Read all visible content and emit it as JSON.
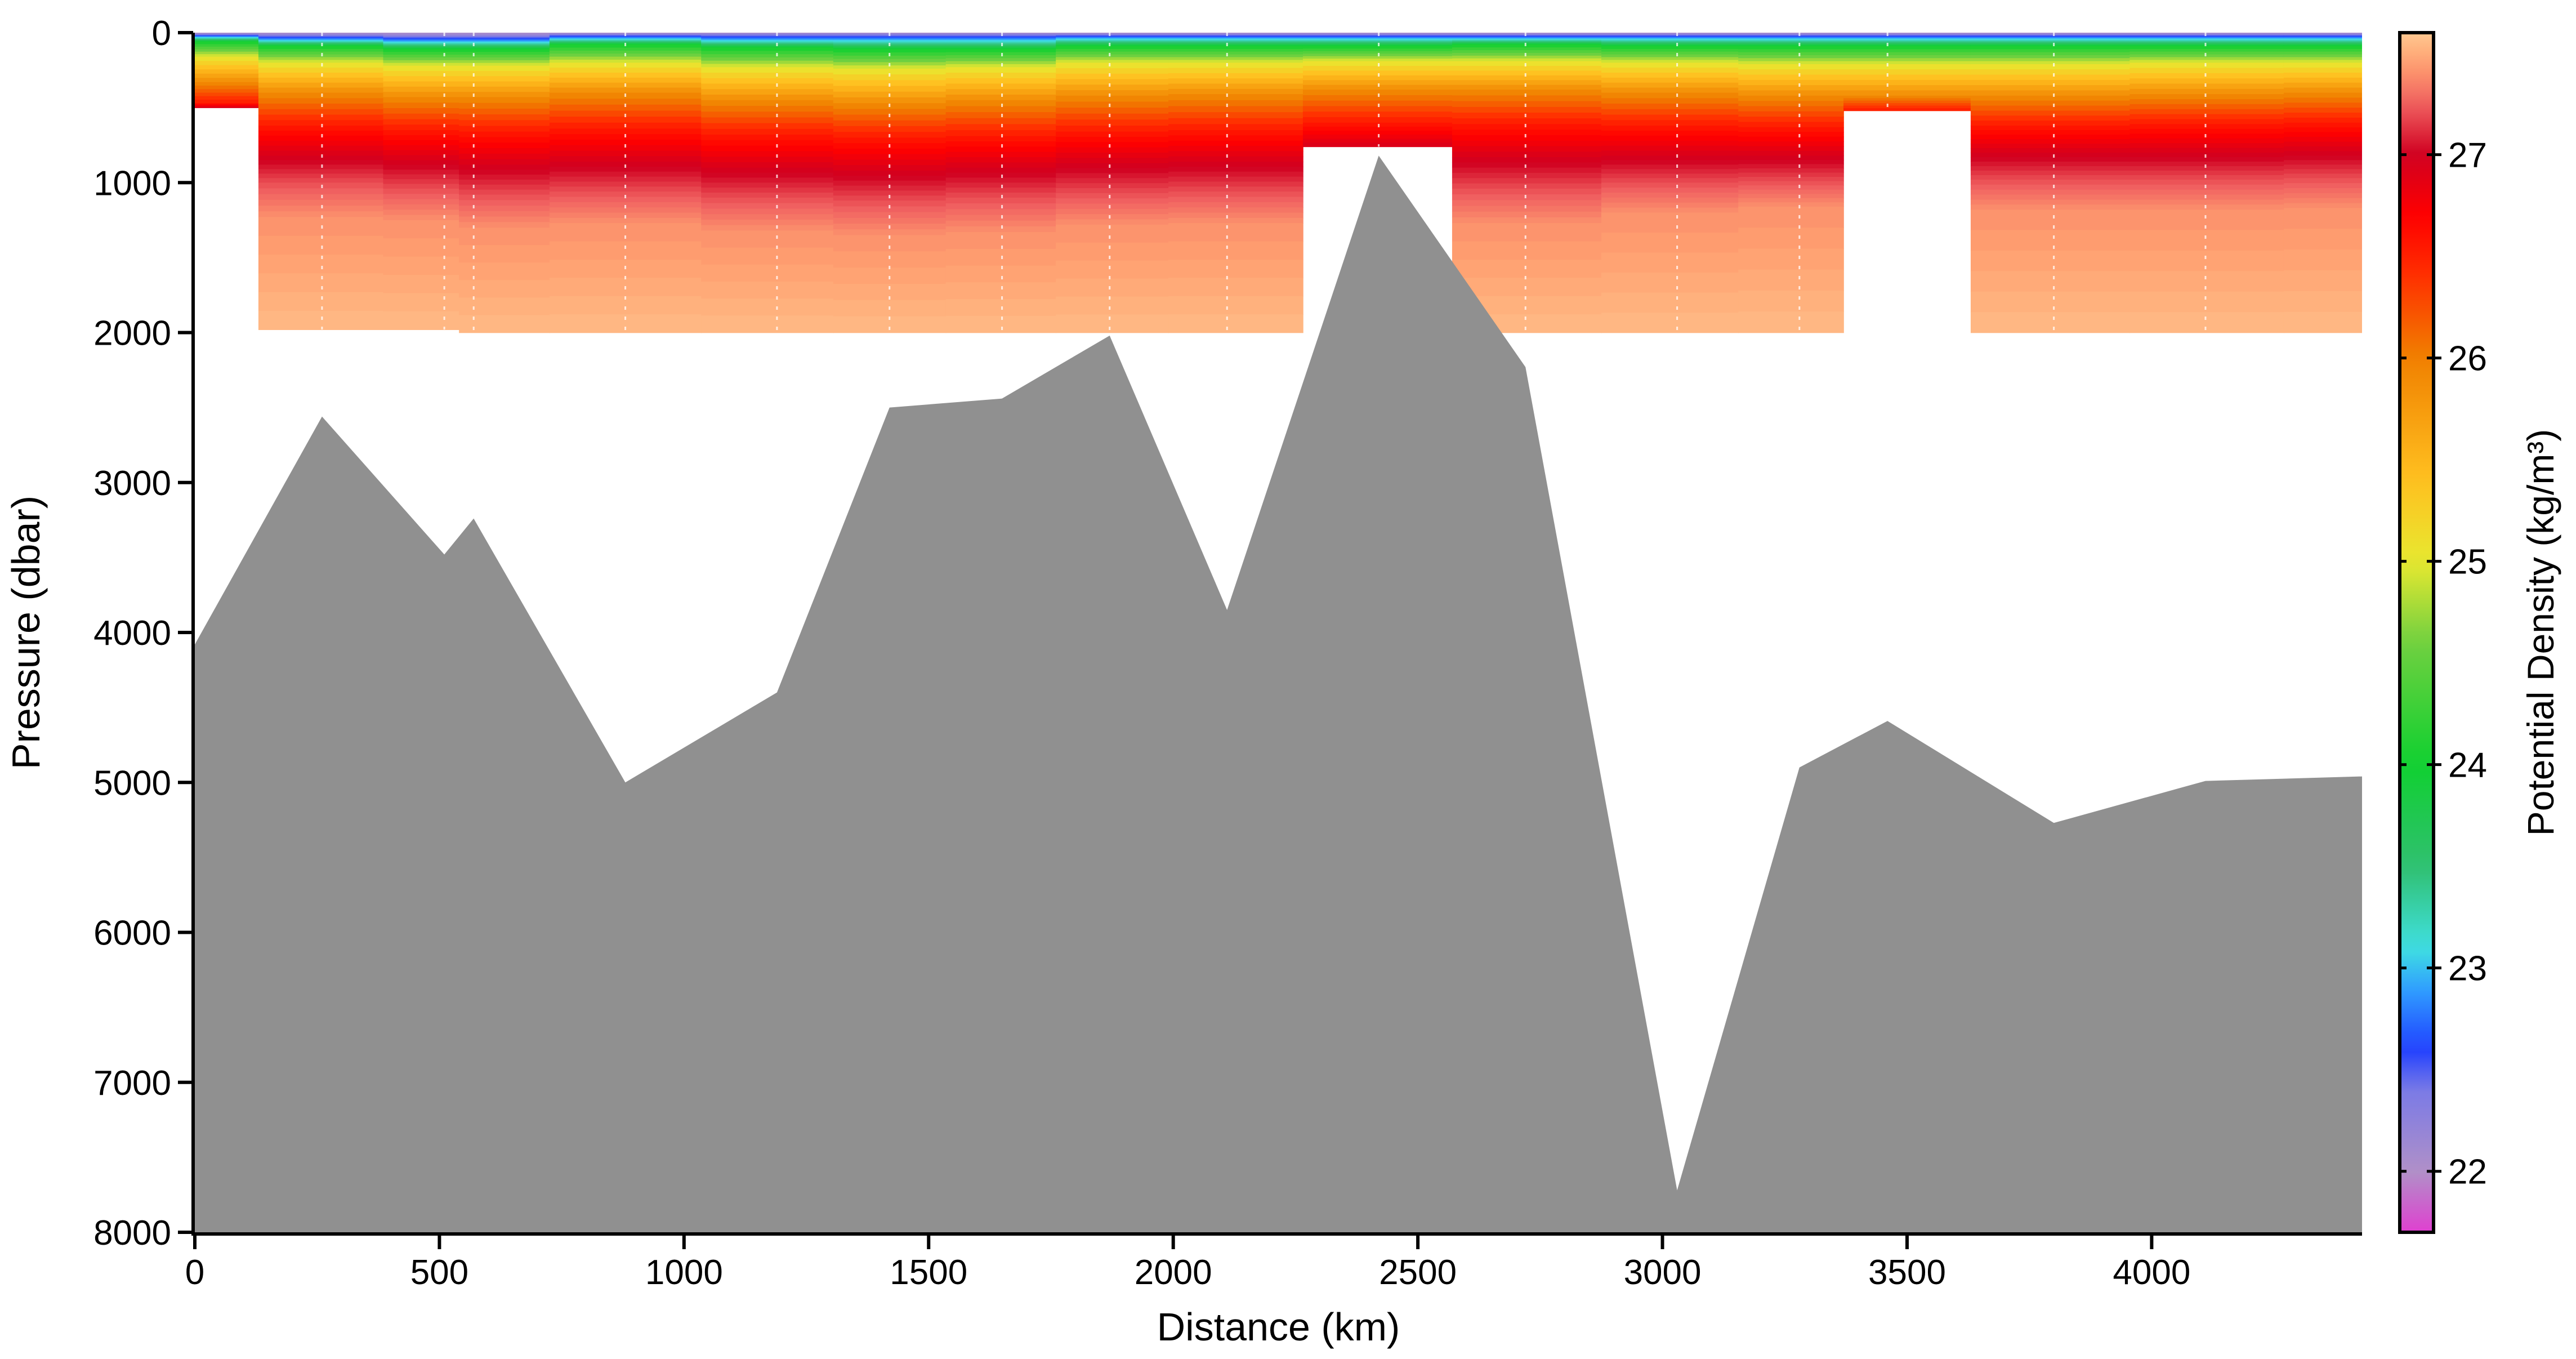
{
  "chart_data": {
    "type": "heatmap",
    "title": "",
    "xlabel": "Distance (km)",
    "ylabel": "Pressure (dbar)",
    "xlim": [
      0,
      4430
    ],
    "ylim": [
      8000,
      0
    ],
    "y_axis_inverted": true,
    "x_ticks": [
      0,
      500,
      1000,
      1500,
      2000,
      2500,
      3000,
      3500,
      4000
    ],
    "y_ticks": [
      0,
      1000,
      2000,
      3000,
      4000,
      5000,
      6000,
      7000,
      8000
    ],
    "colorbar": {
      "label": "Potential Density (kg/m³)",
      "range": [
        21.7,
        27.6
      ],
      "ticks": [
        22,
        23,
        24,
        25,
        26,
        27
      ]
    },
    "stations_km": [
      0,
      260,
      510,
      570,
      880,
      1190,
      1420,
      1650,
      1870,
      2110,
      2420,
      2720,
      3030,
      3280,
      3460,
      3800,
      4110,
      4430
    ],
    "profile_max_pressure_dbar": [
      500,
      1980,
      1980,
      2000,
      2000,
      2000,
      2000,
      2000,
      2000,
      2000,
      760,
      2000,
      2000,
      2000,
      520,
      2000,
      2000,
      2000
    ],
    "bathymetry": {
      "name": "Seafloor",
      "color": "#909090",
      "x": [
        0,
        260,
        510,
        570,
        880,
        1190,
        1420,
        1650,
        1870,
        2110,
        2420,
        2720,
        3030,
        3280,
        3460,
        3800,
        4110,
        4430
      ],
      "y": [
        4080,
        2560,
        3480,
        3240,
        5000,
        4400,
        2500,
        2440,
        2020,
        3850,
        820,
        2230,
        7720,
        4900,
        4590,
        5270,
        4990,
        4960
      ]
    },
    "density_layers": {
      "description_values": "Depth (dbar) of selected isopycnals per station",
      "levels": [
        22.5,
        23.5,
        24.5,
        25.5,
        26.3,
        26.8,
        27.1,
        27.3,
        27.5
      ],
      "depths": [
        [
          10,
          30,
          60,
          160,
          330,
          470,
          620,
          800,
          1000
        ],
        [
          15,
          50,
          90,
          200,
          400,
          620,
          820,
          1000,
          1230
        ],
        [
          20,
          60,
          110,
          220,
          430,
          650,
          850,
          1040,
          1250
        ],
        [
          20,
          60,
          110,
          220,
          430,
          660,
          880,
          1080,
          1300
        ],
        [
          10,
          40,
          80,
          200,
          400,
          640,
          860,
          1060,
          1270
        ],
        [
          10,
          50,
          100,
          230,
          450,
          680,
          900,
          1100,
          1320
        ],
        [
          10,
          50,
          110,
          240,
          470,
          700,
          920,
          1120,
          1350
        ],
        [
          10,
          50,
          110,
          230,
          450,
          690,
          900,
          1100,
          1330
        ],
        [
          10,
          40,
          90,
          200,
          420,
          660,
          870,
          1070,
          1280
        ],
        [
          10,
          40,
          90,
          200,
          410,
          650,
          860,
          1060,
          1270
        ],
        [
          10,
          40,
          90,
          190,
          380,
          600,
          800,
          980,
          1150
        ],
        [
          10,
          40,
          80,
          190,
          380,
          610,
          830,
          1040,
          1270
        ],
        [
          10,
          40,
          90,
          200,
          400,
          620,
          820,
          1000,
          1200
        ],
        [
          10,
          40,
          90,
          210,
          420,
          630,
          820,
          990,
          1160
        ],
        [
          10,
          40,
          90,
          210,
          420,
          620,
          800,
          970,
          1150
        ],
        [
          10,
          40,
          90,
          210,
          420,
          620,
          800,
          980,
          1180
        ],
        [
          10,
          40,
          90,
          200,
          410,
          610,
          800,
          980,
          1180
        ],
        [
          10,
          40,
          90,
          200,
          400,
          600,
          790,
          970,
          1170
        ]
      ]
    }
  }
}
